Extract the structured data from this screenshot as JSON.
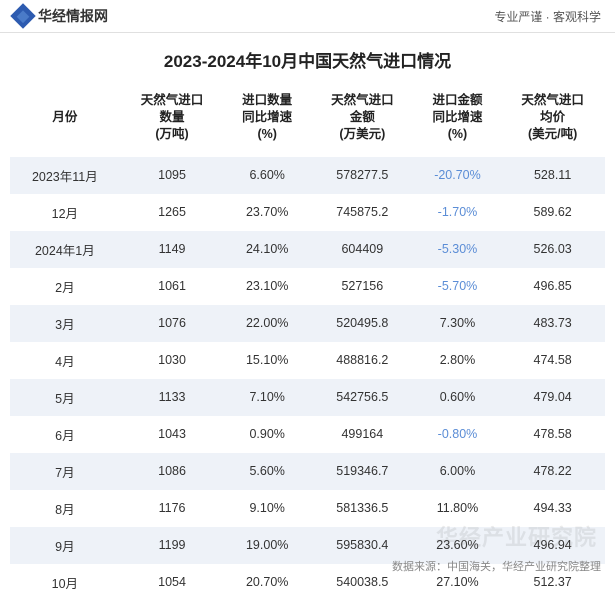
{
  "header": {
    "logo_text": "华经情报网",
    "tagline": "专业严谨 · 客观科学"
  },
  "title": "2023-2024年10月中国天然气进口情况",
  "table": {
    "type": "table",
    "background_color": "#ffffff",
    "stripe_color": "#eef2f8",
    "negative_color": "#5b8dd6",
    "text_color": "#333333",
    "header_fontsize": 13,
    "cell_fontsize": 12.5,
    "columns": [
      {
        "label": "月份",
        "align": "center"
      },
      {
        "label": "天然气进口\n数量\n(万吨)",
        "align": "center"
      },
      {
        "label": "进口数量\n同比增速\n(%)",
        "align": "center"
      },
      {
        "label": "天然气进口\n金额\n(万美元)",
        "align": "center"
      },
      {
        "label": "进口金额\n同比增速\n(%)",
        "align": "center"
      },
      {
        "label": "天然气进口\n均价\n(美元/吨)",
        "align": "center"
      }
    ],
    "rows": [
      {
        "month": "2023年11月",
        "qty": "1095",
        "qty_yoy": "6.60%",
        "amt": "578277.5",
        "amt_yoy": "-20.70%",
        "avg": "528.11"
      },
      {
        "month": "12月",
        "qty": "1265",
        "qty_yoy": "23.70%",
        "amt": "745875.2",
        "amt_yoy": "-1.70%",
        "avg": "589.62"
      },
      {
        "month": "2024年1月",
        "qty": "1149",
        "qty_yoy": "24.10%",
        "amt": "604409",
        "amt_yoy": "-5.30%",
        "avg": "526.03"
      },
      {
        "month": "2月",
        "qty": "1061",
        "qty_yoy": "23.10%",
        "amt": "527156",
        "amt_yoy": "-5.70%",
        "avg": "496.85"
      },
      {
        "month": "3月",
        "qty": "1076",
        "qty_yoy": "22.00%",
        "amt": "520495.8",
        "amt_yoy": "7.30%",
        "avg": "483.73"
      },
      {
        "month": "4月",
        "qty": "1030",
        "qty_yoy": "15.10%",
        "amt": "488816.2",
        "amt_yoy": "2.80%",
        "avg": "474.58"
      },
      {
        "month": "5月",
        "qty": "1133",
        "qty_yoy": "7.10%",
        "amt": "542756.5",
        "amt_yoy": "0.60%",
        "avg": "479.04"
      },
      {
        "month": "6月",
        "qty": "1043",
        "qty_yoy": "0.90%",
        "amt": "499164",
        "amt_yoy": "-0.80%",
        "avg": "478.58"
      },
      {
        "month": "7月",
        "qty": "1086",
        "qty_yoy": "5.60%",
        "amt": "519346.7",
        "amt_yoy": "6.00%",
        "avg": "478.22"
      },
      {
        "month": "8月",
        "qty": "1176",
        "qty_yoy": "9.10%",
        "amt": "581336.5",
        "amt_yoy": "11.80%",
        "avg": "494.33"
      },
      {
        "month": "9月",
        "qty": "1199",
        "qty_yoy": "19.00%",
        "amt": "595830.4",
        "amt_yoy": "23.60%",
        "avg": "496.94"
      },
      {
        "month": "10月",
        "qty": "1054",
        "qty_yoy": "20.70%",
        "amt": "540038.5",
        "amt_yoy": "27.10%",
        "avg": "512.37"
      }
    ]
  },
  "watermark": "华经产业研究院",
  "source": "数据来源：中国海关，华经产业研究院整理"
}
